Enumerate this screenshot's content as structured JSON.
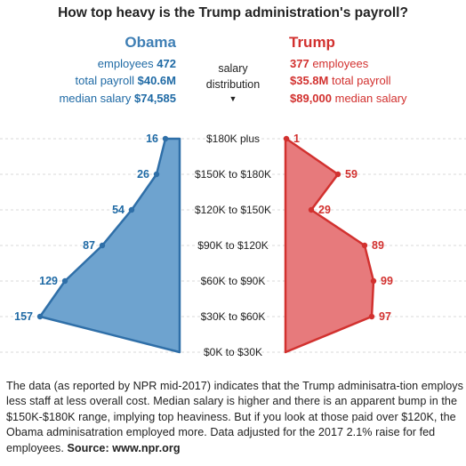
{
  "title": "How top heavy is the Trump administration's payroll?",
  "obama": {
    "name": "Obama",
    "employees_label": "employees",
    "employees": "472",
    "payroll_label": "total payroll",
    "payroll": "$40.6M",
    "median_label": "median salary",
    "median": "$74,585",
    "color": "#3f7fb5"
  },
  "trump": {
    "name": "Trump",
    "employees": "377",
    "employees_label": "employees",
    "payroll": "$35.8M",
    "payroll_label": "total payroll",
    "median": "$89,000",
    "median_label": "median salary",
    "color": "#d2312f"
  },
  "center": {
    "line1": "salary",
    "line2": "distribution",
    "arrow": "▼"
  },
  "footnote": {
    "text": "The data (as reported by NPR mid-2017) indicates that the Trump adminisatra-tion employs less staff at less overall cost. Median salary is higher and there is an apparent bump in the $150K-$180K range, implying top heaviness. But if you look at those paid over $120K, the Obama adminisatration employed more. Data adjusted for the 2017 2.1% raise for fed employees.",
    "source_label": "Source: www.npr.org"
  },
  "chart_data": {
    "type": "area",
    "title": "How top heavy is the Trump administration's payroll?",
    "categories": [
      "$180K plus",
      "$150K to $180K",
      "$120K to $150K",
      "$90K to $120K",
      "$60K to $90K",
      "$30K to $60K",
      "$0K to $30K"
    ],
    "series": [
      {
        "name": "Obama",
        "values": [
          16,
          26,
          54,
          87,
          129,
          157,
          0
        ],
        "color": "#6ea3cf",
        "stroke": "#2f6fa8"
      },
      {
        "name": "Trump",
        "values": [
          1,
          59,
          29,
          89,
          99,
          97,
          0
        ],
        "color": "#e77a7c",
        "stroke": "#d2312f"
      }
    ],
    "labels_shown": [
      "16",
      "26",
      "54",
      "87",
      "129",
      "157",
      "1",
      "59",
      "29",
      "89",
      "99",
      "97"
    ],
    "grid": true
  }
}
